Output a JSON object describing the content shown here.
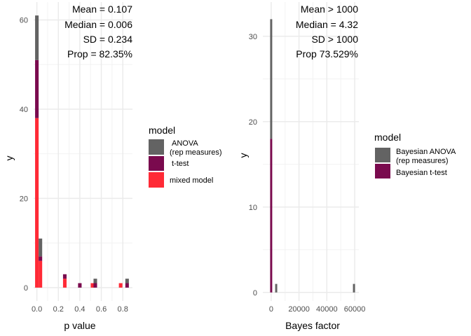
{
  "chart_data": [
    {
      "type": "bar",
      "stacked": true,
      "xlabel": "p value",
      "ylabel": "y",
      "xlim": [
        -0.03,
        0.89
      ],
      "ylim": [
        -3,
        64
      ],
      "xticks": [
        "0.0",
        "0.2",
        "0.4",
        "0.6",
        "0.8"
      ],
      "yticks": [
        "0",
        "20",
        "40",
        "60"
      ],
      "grid": true,
      "bin_width": 0.033,
      "x": [
        0.0,
        0.033,
        0.26,
        0.4,
        0.518,
        0.544,
        0.78,
        0.84
      ],
      "series": [
        {
          "name": "mixed model",
          "color": "#ff2a36",
          "values": [
            38,
            6,
            2,
            0,
            1,
            0,
            1,
            0
          ]
        },
        {
          "name": "t-test",
          "color": "#7a0a4e",
          "values": [
            13,
            1,
            1,
            1,
            0,
            1,
            0,
            1
          ]
        },
        {
          "name": "ANOVA\n(rep measures)",
          "color": "#636363",
          "values": [
            10,
            4,
            0,
            0,
            0,
            1,
            0,
            1
          ]
        }
      ],
      "annotations": [
        "Mean  =  0.107",
        "Median  =  0.006",
        "SD  =  0.234",
        "Prop = 82.35%"
      ],
      "legend": {
        "title": "model",
        "position": "right",
        "items": [
          "ANOVA",
          "(rep measures)",
          "t-test",
          "mixed model"
        ]
      }
    },
    {
      "type": "bar",
      "stacked": true,
      "xlabel": "Bayes factor",
      "ylabel": "y",
      "xlim": [
        -6000,
        63000
      ],
      "ylim": [
        -1,
        34
      ],
      "xticks": [
        "0",
        "20000",
        "40000",
        "60000"
      ],
      "yticks": [
        "0",
        "10",
        "20",
        "30"
      ],
      "grid": true,
      "bin_width": 1500,
      "x": [
        0,
        3600,
        59500
      ],
      "series": [
        {
          "name": "Bayesian t-test",
          "color": "#7a0a4e",
          "values": [
            18,
            0,
            0
          ]
        },
        {
          "name": "Bayesian ANOVA\n(rep measures)",
          "color": "#636363",
          "values": [
            14,
            1,
            1
          ]
        }
      ],
      "annotations": [
        "Mean > 1000",
        "Median  =  4.32",
        "SD > 1000",
        "Prop 73.529%"
      ],
      "legend": {
        "title": "model",
        "position": "right",
        "items": [
          "Bayesian ANOVA",
          "(rep measures)",
          "Bayesian t-test"
        ]
      }
    }
  ]
}
